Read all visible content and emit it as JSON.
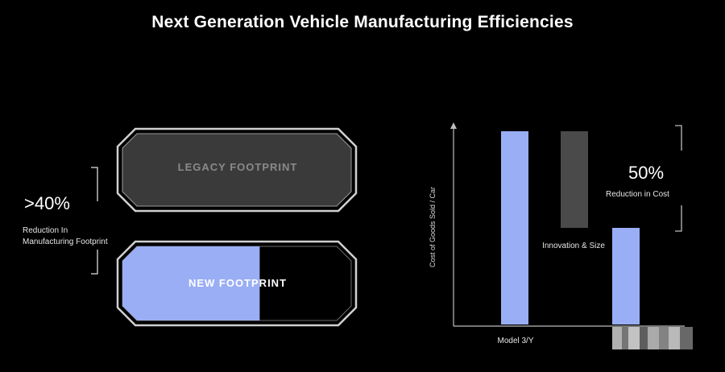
{
  "title": "Next Generation Vehicle Manufacturing Efficiencies",
  "left_panel": {
    "stat_value": ">40%",
    "stat_description": "Reduction In Manufacturing Footprint",
    "legacy_label": "LEGACY FOOTPRINT",
    "new_label": "NEW FOOTPRINT",
    "new_fill_fraction": 0.6
  },
  "chart_data": {
    "type": "bar",
    "ylabel": "Cost of Goods Sold / Car",
    "xlabel": "Model 3/Y",
    "bars": [
      {
        "label": "",
        "low": 0,
        "high": 100,
        "color": "#9aaef5"
      },
      {
        "label": "Innovation & Size",
        "low": 50,
        "high": 100,
        "color": "#4a4a4a"
      },
      {
        "label": "",
        "low": 0,
        "high": 50,
        "color": "#9aaef5"
      }
    ],
    "annotation_value": "50%",
    "annotation_text": "Reduction in Cost",
    "ylim": [
      0,
      100
    ],
    "grid": false
  },
  "colors": {
    "background": "#000000",
    "accent": "#9aaef5",
    "legacy_fill": "#3a3a3a",
    "outline": "#c8c8c8"
  }
}
